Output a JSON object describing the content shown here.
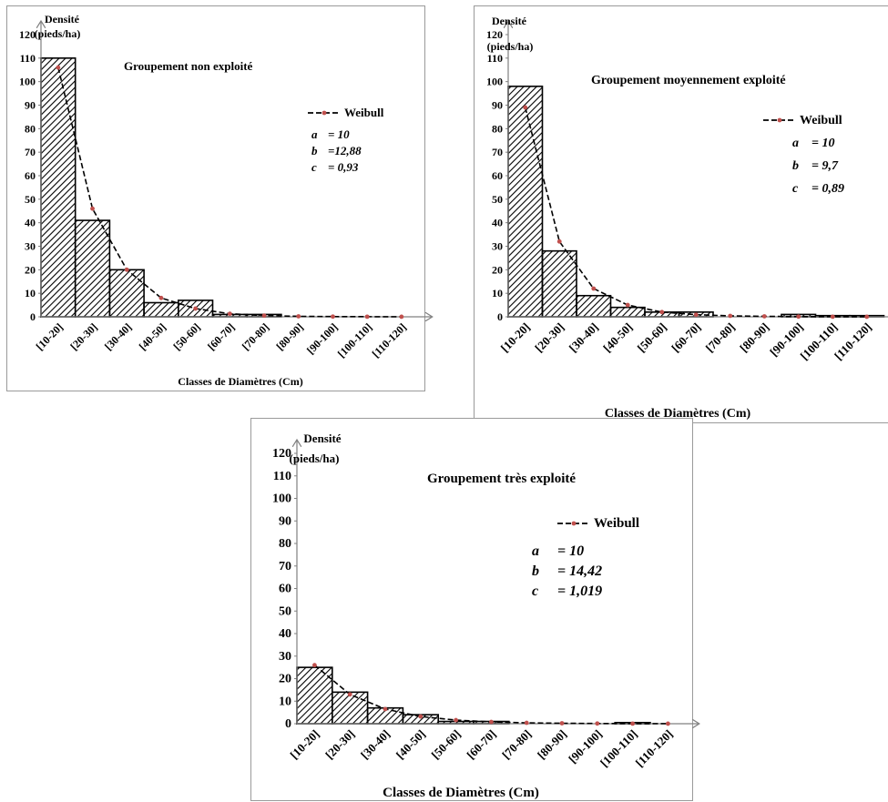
{
  "chart_data": [
    {
      "type": "bar",
      "title": "Groupement non exploité",
      "ylabel_line1": "Densité",
      "ylabel_line2": "(pieds/ha)",
      "xlabel": "Classes de Diamètres (Cm)",
      "categories": [
        "[10-20]",
        "[20-30]",
        "[30-40]",
        "[40-50]",
        "[50-60]",
        "[60-70]",
        "[70-80]",
        "[80-90]",
        "[90-100]",
        "[100-110]",
        "[110-120]"
      ],
      "yticks": [
        "0",
        "10",
        "20",
        "30",
        "40",
        "50",
        "60",
        "70",
        "80",
        "90",
        "100",
        "110",
        "120"
      ],
      "ylim": [
        0,
        120
      ],
      "series": [
        {
          "kind": "bar",
          "values": [
            110,
            41,
            20,
            6,
            7,
            1,
            1,
            0,
            0,
            0,
            0
          ]
        },
        {
          "kind": "line",
          "name": "Weibull",
          "values": [
            106,
            46,
            20,
            8,
            3.5,
            1.3,
            0.5,
            0.2,
            0.1,
            0.05,
            0.02
          ]
        }
      ],
      "params": [
        {
          "name": "a",
          "value": "= 10"
        },
        {
          "name": "b",
          "value": "=12,88"
        },
        {
          "name": "c",
          "value": "= 0,93"
        }
      ],
      "colors": {
        "bar_outline": "#000000",
        "hatch": "#000000",
        "curve": "#000000",
        "markers": "#c0504d",
        "axis": "#808080"
      }
    },
    {
      "type": "bar",
      "title": "Groupement moyennement exploité",
      "ylabel_line1": "Densité",
      "ylabel_line2": "(pieds/ha)",
      "xlabel": "Classes de Diamètres (Cm)",
      "categories": [
        "[10-20]",
        "[20-30]",
        "[30-40]",
        "[40-50]",
        "[50-60]",
        "[60-70]",
        "[70-80]",
        "[80-90]",
        "[90-100]",
        "[100-110]",
        "[110-120]"
      ],
      "yticks": [
        "0",
        "10",
        "20",
        "30",
        "40",
        "50",
        "60",
        "70",
        "80",
        "90",
        "100",
        "110",
        "120"
      ],
      "ylim": [
        0,
        120
      ],
      "series": [
        {
          "kind": "bar",
          "values": [
            98,
            28,
            9,
            4,
            2,
            2,
            0,
            0,
            1,
            0.5,
            0.5
          ]
        },
        {
          "kind": "line",
          "name": "Weibull",
          "values": [
            89,
            32,
            12,
            5,
            2,
            0.9,
            0.4,
            0.2,
            0.1,
            0.05,
            0.02
          ]
        }
      ],
      "params": [
        {
          "name": "a",
          "value": "= 10"
        },
        {
          "name": "b",
          "value": "= 9,7"
        },
        {
          "name": "c",
          "value": "= 0,89"
        }
      ],
      "colors": {
        "bar_outline": "#000000",
        "hatch": "#000000",
        "curve": "#000000",
        "markers": "#c0504d",
        "axis": "#808080"
      }
    },
    {
      "type": "bar",
      "title": "Groupement très exploité",
      "ylabel_line1": "Densité",
      "ylabel_line2": "(pieds/ha)",
      "xlabel": "Classes de Diamètres (Cm)",
      "categories": [
        "[10-20]",
        "[20-30]",
        "[30-40]",
        "[40-50]",
        "[50-60]",
        "[60-70]",
        "[70-80]",
        "[80-90]",
        "[90-100]",
        "[100-110]",
        "[110-120]"
      ],
      "yticks": [
        "0",
        "10",
        "20",
        "30",
        "40",
        "50",
        "60",
        "70",
        "80",
        "90",
        "100",
        "110",
        "120"
      ],
      "ylim": [
        0,
        120
      ],
      "series": [
        {
          "kind": "bar",
          "values": [
            25,
            14,
            7,
            4,
            1,
            1,
            0,
            0,
            0,
            0.5,
            0
          ]
        },
        {
          "kind": "line",
          "name": "Weibull",
          "values": [
            26,
            13,
            6.5,
            3.2,
            1.6,
            0.8,
            0.4,
            0.2,
            0.1,
            0.05,
            0.02
          ]
        }
      ],
      "params": [
        {
          "name": "a",
          "value": "= 10"
        },
        {
          "name": "b",
          "value": "= 14,42"
        },
        {
          "name": "c",
          "value": "= 1,019"
        }
      ],
      "colors": {
        "bar_outline": "#000000",
        "hatch": "#000000",
        "curve": "#000000",
        "markers": "#c0504d",
        "axis": "#808080"
      }
    }
  ]
}
